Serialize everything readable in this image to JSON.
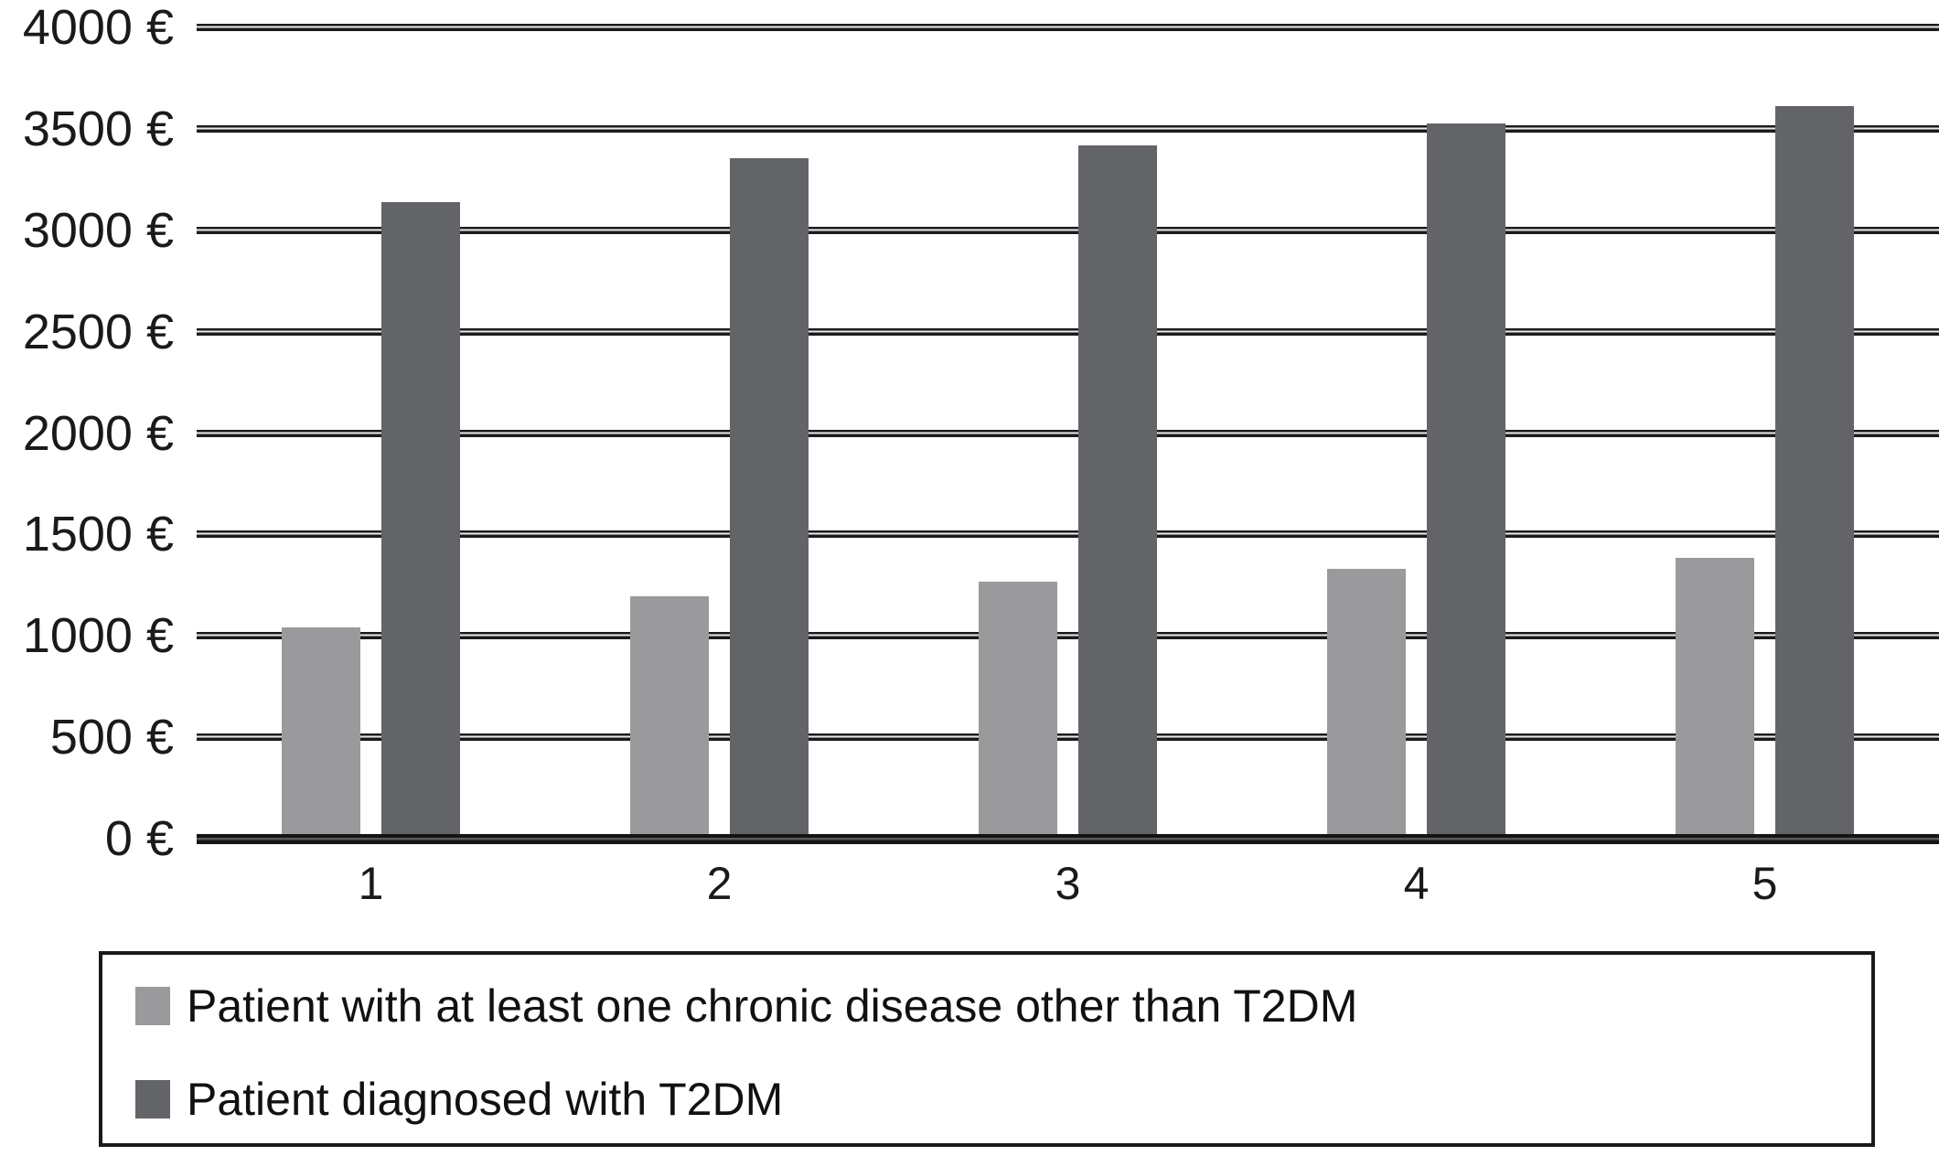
{
  "accent_colors": {
    "series_light": "#9a9a9d",
    "series_dark": "#636467",
    "grid_color": "#1b1b1b",
    "text_color": "#1a1a1a",
    "background": "#ffffff"
  },
  "chart_data": {
    "type": "bar",
    "title": "",
    "xlabel": "",
    "ylabel": "",
    "categories": [
      "1",
      "2",
      "3",
      "4",
      "5"
    ],
    "series": [
      {
        "name": "Patient with at least one chronic disease other than T2DM",
        "color": "#9a9a9d",
        "values": [
          1040,
          1195,
          1265,
          1330,
          1385
        ]
      },
      {
        "name": "Patient diagnosed with T2DM",
        "color": "#636467",
        "values": [
          3140,
          3355,
          3420,
          3525,
          3610
        ]
      }
    ],
    "y_ticks": [
      {
        "value": 4000,
        "label": "4000 €"
      },
      {
        "value": 3500,
        "label": "3500 €"
      },
      {
        "value": 3000,
        "label": "3000 €"
      },
      {
        "value": 2500,
        "label": "2500 €"
      },
      {
        "value": 2000,
        "label": "2000 €"
      },
      {
        "value": 1500,
        "label": "1500 €"
      },
      {
        "value": 1000,
        "label": "1000 €"
      },
      {
        "value": 500,
        "label": "500 €"
      },
      {
        "value": 0,
        "label": "0 €"
      }
    ],
    "ylim": [
      0,
      4000
    ],
    "y_step": 500,
    "grid": "horizontal",
    "legend_position": "bottom-box"
  },
  "layout_note_visible_elements": "clustered bar chart, 5 categories, 2 series, boxed legend below axis"
}
